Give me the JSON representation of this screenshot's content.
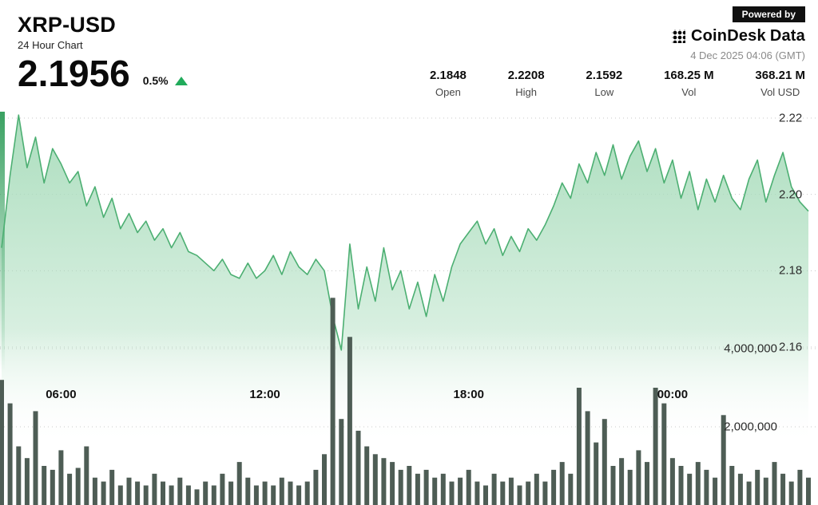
{
  "header": {
    "symbol": "XRP-USD",
    "subtitle": "24 Hour Chart",
    "price": "2.1956",
    "change_percent": "0.5%",
    "change_direction": "up",
    "powered_by": "Powered by",
    "brand_coindesk": "CoinDesk",
    "brand_data": "Data",
    "timestamp": "4 Dec 2025 04:06 (GMT)"
  },
  "stats": [
    {
      "value": "2.1848",
      "label": "Open"
    },
    {
      "value": "2.2208",
      "label": "High"
    },
    {
      "value": "2.1592",
      "label": "Low"
    },
    {
      "value": "168.25 M",
      "label": "Vol"
    },
    {
      "value": "368.21 M",
      "label": "Vol USD"
    }
  ],
  "chart_data": {
    "type": "area",
    "title": "XRP-USD 24 Hour Chart",
    "legend": "off",
    "grid": "dotted-horizontal",
    "price_range_shown": [
      2.16,
      2.22
    ],
    "volume_range_shown": [
      0,
      4000000
    ],
    "interval_minutes": 15,
    "x_ticks": [
      {
        "label": "06:00",
        "index": 7
      },
      {
        "label": "12:00",
        "index": 31
      },
      {
        "label": "18:00",
        "index": 55
      },
      {
        "label": "00:00",
        "index": 79
      }
    ],
    "price_ticks": [
      {
        "label": "2.22",
        "value": 2.22
      },
      {
        "label": "2.20",
        "value": 2.2
      },
      {
        "label": "2.18",
        "value": 2.18
      },
      {
        "label": "2.16",
        "value": 2.16
      }
    ],
    "volume_ticks": [
      {
        "label": "4,000,000",
        "value": 4000000
      },
      {
        "label": "2,000,000",
        "value": 2000000
      }
    ],
    "series": [
      {
        "name": "price",
        "values": [
          2.186,
          2.205,
          2.2208,
          2.207,
          2.215,
          2.203,
          2.212,
          2.208,
          2.203,
          2.206,
          2.197,
          2.202,
          2.194,
          2.199,
          2.191,
          2.195,
          2.19,
          2.193,
          2.188,
          2.191,
          2.186,
          2.19,
          2.185,
          2.184,
          2.182,
          2.18,
          2.183,
          2.179,
          2.178,
          2.182,
          2.178,
          2.18,
          2.184,
          2.179,
          2.185,
          2.181,
          2.179,
          2.183,
          2.18,
          2.168,
          2.1592,
          2.187,
          2.17,
          2.181,
          2.172,
          2.186,
          2.175,
          2.18,
          2.17,
          2.177,
          2.168,
          2.179,
          2.172,
          2.181,
          2.187,
          2.19,
          2.193,
          2.187,
          2.191,
          2.184,
          2.189,
          2.185,
          2.191,
          2.188,
          2.192,
          2.197,
          2.203,
          2.199,
          2.208,
          2.203,
          2.211,
          2.205,
          2.213,
          2.204,
          2.21,
          2.214,
          2.206,
          2.212,
          2.203,
          2.209,
          2.199,
          2.206,
          2.196,
          2.204,
          2.198,
          2.205,
          2.199,
          2.196,
          2.204,
          2.209,
          2.198,
          2.205,
          2.211,
          2.202,
          2.198,
          2.1956
        ]
      },
      {
        "name": "volume",
        "values": [
          3200000,
          2600000,
          1500000,
          1200000,
          2400000,
          1000000,
          900000,
          1400000,
          800000,
          950000,
          1500000,
          700000,
          600000,
          900000,
          500000,
          700000,
          600000,
          500000,
          800000,
          600000,
          500000,
          700000,
          500000,
          400000,
          600000,
          500000,
          800000,
          600000,
          1100000,
          700000,
          500000,
          600000,
          500000,
          700000,
          600000,
          500000,
          600000,
          900000,
          1300000,
          5300000,
          2200000,
          4300000,
          1900000,
          1500000,
          1300000,
          1200000,
          1100000,
          900000,
          1000000,
          800000,
          900000,
          700000,
          800000,
          600000,
          700000,
          900000,
          600000,
          500000,
          800000,
          600000,
          700000,
          500000,
          600000,
          800000,
          600000,
          900000,
          1100000,
          800000,
          3000000,
          2400000,
          1600000,
          2200000,
          1000000,
          1200000,
          900000,
          1400000,
          1100000,
          3000000,
          2600000,
          1200000,
          1000000,
          800000,
          1100000,
          900000,
          700000,
          2300000,
          1000000,
          800000,
          600000,
          900000,
          700000,
          1100000,
          800000,
          600000,
          900000,
          700000
        ]
      }
    ],
    "colors": {
      "line": "#4caf72",
      "fill_top": "#a8dcbb",
      "left_strip": "#2f9c59",
      "volume_bar": "#4e5d55",
      "grid": "#c8c8c8",
      "up": "#21ab5b"
    }
  }
}
